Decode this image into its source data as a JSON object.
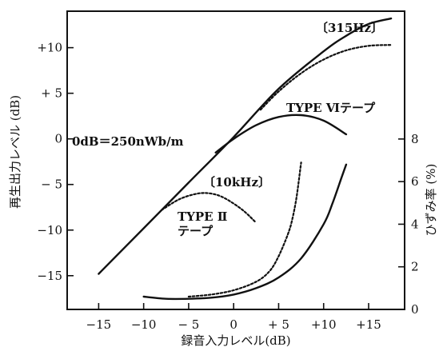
{
  "chart_data": {
    "type": "line",
    "xlabel": "録音入力レベル(dB)",
    "ylabel_left": "再生出力レベル (dB)",
    "ylabel_right": "ひずみ率 (%)",
    "xlim": [
      -18.5,
      19
    ],
    "ylim_left": [
      -18.7,
      14
    ],
    "ylim_right": [
      0,
      14
    ],
    "x_ticks": [
      -15,
      -10,
      -5,
      0,
      5,
      10,
      15
    ],
    "x_tick_labels": [
      "−15",
      "−10",
      "− 5",
      "0",
      "+ 5",
      "+10",
      "+15"
    ],
    "y_ticks_left": [
      10,
      5,
      0,
      -5,
      -10,
      -15
    ],
    "y_tick_labels_left": [
      "+10",
      "+ 5",
      "0",
      "− 5",
      "−10",
      "−15"
    ],
    "y_ticks_right": [
      8,
      6,
      4,
      2,
      0
    ],
    "y_tick_labels_right": [
      "8",
      "6",
      "4",
      "2",
      "0"
    ],
    "annotations": {
      "ref_level": "0dB＝250nWb/m",
      "freq_315": "〔315Hz〕",
      "freq_10k": "〔10kHz〕",
      "type6_label": "TYPE Ⅵテープ",
      "type2_label_line1": "TYPE Ⅱ",
      "type2_label_line2": "テープ"
    },
    "series": [
      {
        "axis": "left",
        "style": "solid",
        "group": "315Hz",
        "x": [
          -15,
          -10,
          -5,
          0,
          5,
          10,
          12.5,
          15,
          17.5
        ],
        "y": [
          -14.8,
          -9.8,
          -4.8,
          0.2,
          5.5,
          9.6,
          11.3,
          12.6,
          13.2
        ]
      },
      {
        "axis": "left",
        "style": "dashed",
        "group": "315Hz",
        "x": [
          3,
          5,
          7.5,
          10,
          12.5,
          15,
          17.5
        ],
        "y": [
          3.2,
          5.2,
          7.2,
          8.7,
          9.7,
          10.2,
          10.3
        ]
      },
      {
        "axis": "left",
        "style": "solid",
        "group": "TYPE VI",
        "x": [
          -2,
          0,
          2.5,
          5,
          7.5,
          10,
          12.5
        ],
        "y": [
          -1.5,
          0,
          1.5,
          2.4,
          2.6,
          2.0,
          0.5
        ]
      },
      {
        "axis": "left",
        "style": "dashed",
        "group": "TYPE II 10kHz",
        "x": [
          -8,
          -6,
          -4,
          -2.5,
          -1,
          1,
          2.5
        ],
        "y": [
          -7.8,
          -6.6,
          -6.0,
          -6.0,
          -6.5,
          -7.8,
          -9.2
        ]
      },
      {
        "axis": "right",
        "style": "solid",
        "group": "distortion",
        "x": [
          -10,
          -7.5,
          -5,
          -2.5,
          0,
          2.5,
          5,
          7.5,
          10,
          11,
          12,
          12.5
        ],
        "y": [
          0.6,
          0.5,
          0.5,
          0.55,
          0.7,
          1.0,
          1.5,
          2.4,
          4.0,
          5.0,
          6.2,
          6.8
        ]
      },
      {
        "axis": "right",
        "style": "dashed",
        "group": "distortion",
        "x": [
          -5,
          -2.5,
          0,
          2.5,
          4,
          5,
          6,
          6.5,
          7,
          7.5
        ],
        "y": [
          0.6,
          0.7,
          0.9,
          1.3,
          1.8,
          2.5,
          3.5,
          4.2,
          5.3,
          6.9
        ]
      }
    ]
  }
}
